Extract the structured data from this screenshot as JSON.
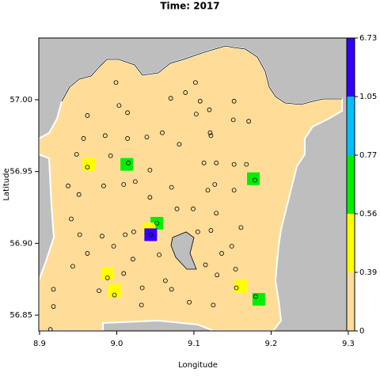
{
  "chart_data": {
    "type": "map",
    "title": "Time: 2017",
    "xlabel": "Longitude",
    "ylabel": "Latitude",
    "xlim": [
      8.899,
      9.298
    ],
    "ylim": [
      56.839,
      57.043
    ],
    "xticks": [
      8.9,
      {
        "value": 9,
        "label": "9.0"
      },
      9.1,
      9.2,
      9.3
    ],
    "yticks": [
      56.85,
      {
        "value": 56.9,
        "label": "56.90"
      },
      56.95,
      {
        "value": 57,
        "label": "57.00"
      }
    ],
    "colorbar": {
      "breaks": [
        0,
        0.39,
        0.56,
        0.77,
        1.05,
        6.73
      ],
      "colors": [
        "#ffdd99",
        "#ffff00",
        "#00ee00",
        "#00bfff",
        "#3300ff"
      ]
    },
    "cells": {
      "lon": [
        8.964,
        9.013,
        9.177,
        9.052,
        9.042,
        9.044,
        8.988,
        8.997,
        9.161,
        9.184
      ],
      "lat": [
        56.955,
        56.955,
        56.945,
        56.914,
        56.91,
        56.906,
        56.879,
        56.867,
        56.87,
        56.861
      ],
      "values": [
        0.45,
        0.7,
        0.7,
        0.7,
        0.5,
        2.0,
        0.45,
        0.45,
        0.45,
        0.7
      ]
    },
    "stations": {
      "lon": [
        8.999,
        9.102,
        8.962,
        9.014,
        9.003,
        9.07,
        9.089,
        9.108,
        9.12,
        9.152,
        9.103,
        9.151,
        9.171,
        8.957,
        8.985,
        9.014,
        9.039,
        9.059,
        9.081,
        9.121,
        9.122,
        8.948,
        8.992,
        9.015,
        8.962,
        9.043,
        9.113,
        9.129,
        9.152,
        9.168,
        9.179,
        8.937,
        8.983,
        9.009,
        9.024,
        9.071,
        9.118,
        9.127,
        9.152,
        8.951,
        9.043,
        9.078,
        9.099,
        8.941,
        9.129,
        9.022,
        9.052,
        8.952,
        8.981,
        9.011,
        9.105,
        9.122,
        9.161,
        8.996,
        8.962,
        9.055,
        9.136,
        9.149,
        9.021,
        8.943,
        9.009,
        8.988,
        9.115,
        9.063,
        9.154,
        9.13,
        8.977,
        8.997,
        9.033,
        9.071,
        9.155,
        9.094,
        8.918,
        9.125,
        9.032,
        8.918,
        9.18,
        8.914,
        9.044
      ],
      "lat": [
        57.012,
        57.012,
        56.989,
        56.991,
        56.996,
        57.001,
        57.005,
        56.999,
        56.993,
        56.999,
        56.99,
        56.986,
        56.985,
        56.973,
        56.975,
        56.973,
        56.974,
        56.977,
        56.969,
        56.977,
        56.975,
        56.962,
        56.961,
        56.956,
        56.953,
        56.951,
        56.956,
        56.956,
        56.955,
        56.955,
        56.944,
        56.94,
        56.94,
        56.941,
        56.943,
        56.939,
        56.937,
        56.941,
        56.937,
        56.934,
        56.932,
        56.924,
        56.924,
        56.917,
        56.921,
        56.908,
        56.914,
        56.906,
        56.905,
        56.906,
        56.908,
        56.909,
        56.911,
        56.898,
        56.893,
        56.892,
        56.893,
        56.898,
        56.889,
        56.884,
        56.879,
        56.876,
        56.885,
        56.874,
        56.882,
        56.878,
        56.867,
        56.864,
        56.869,
        56.868,
        56.869,
        56.859,
        56.868,
        56.857,
        56.857,
        56.856,
        56.863,
        56.84,
        56.906
      ]
    }
  }
}
